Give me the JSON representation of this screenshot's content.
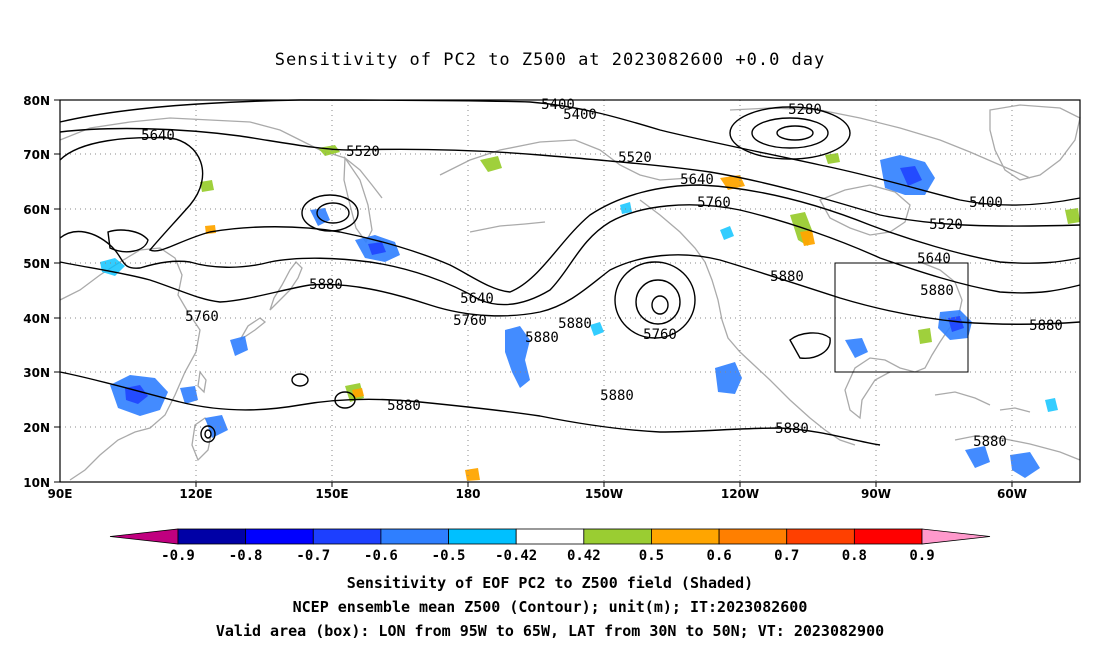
{
  "title": "Sensitivity of PC2 to Z500 at 2023082600 +0.0 day",
  "lat_labels": [
    "80N",
    "70N",
    "60N",
    "50N",
    "40N",
    "30N",
    "20N",
    "10N"
  ],
  "lon_labels": [
    "90E",
    "120E",
    "150E",
    "180",
    "150W",
    "120W",
    "90W",
    "60W"
  ],
  "contour_labels": [
    "5400",
    "5400",
    "5280",
    "5640",
    "5520",
    "5520",
    "5640",
    "5760",
    "5400",
    "5520",
    "5640",
    "5880",
    "5640",
    "5760",
    "5880",
    "5880",
    "5760",
    "5760",
    "5880",
    "5880",
    "5880",
    "5880",
    "5880",
    "5880"
  ],
  "colorbar": {
    "labels": [
      "-0.9",
      "-0.8",
      "-0.7",
      "-0.6",
      "-0.5",
      "-0.42",
      "0.42",
      "0.5",
      "0.6",
      "0.7",
      "0.8",
      "0.9"
    ],
    "colors": [
      "#c0007f",
      "#0000a6",
      "#0000ff",
      "#1d3fff",
      "#2f7fff",
      "#00c0ff",
      "#ffffff",
      "#9acd32",
      "#ffa500",
      "#ff7f00",
      "#ff4000",
      "#ff0000",
      "#ff99cc"
    ]
  },
  "valid_box": {
    "lon_from": "95W",
    "lon_to": "65W",
    "lat_from": "30N",
    "lat_to": "50N"
  },
  "footer": {
    "line1": "Sensitivity of EOF PC2 to Z500 field (Shaded)",
    "line2": "NCEP ensemble mean Z500 (Contour); unit(m); IT:2023082600",
    "line3": "Valid area (box): LON from 95W to 65W, LAT from 30N to 50N; VT: 2023082900"
  },
  "colors": {
    "contour": "#000000",
    "coastline": "#aaaaaa",
    "grid": "#888888",
    "frame": "#000000"
  }
}
